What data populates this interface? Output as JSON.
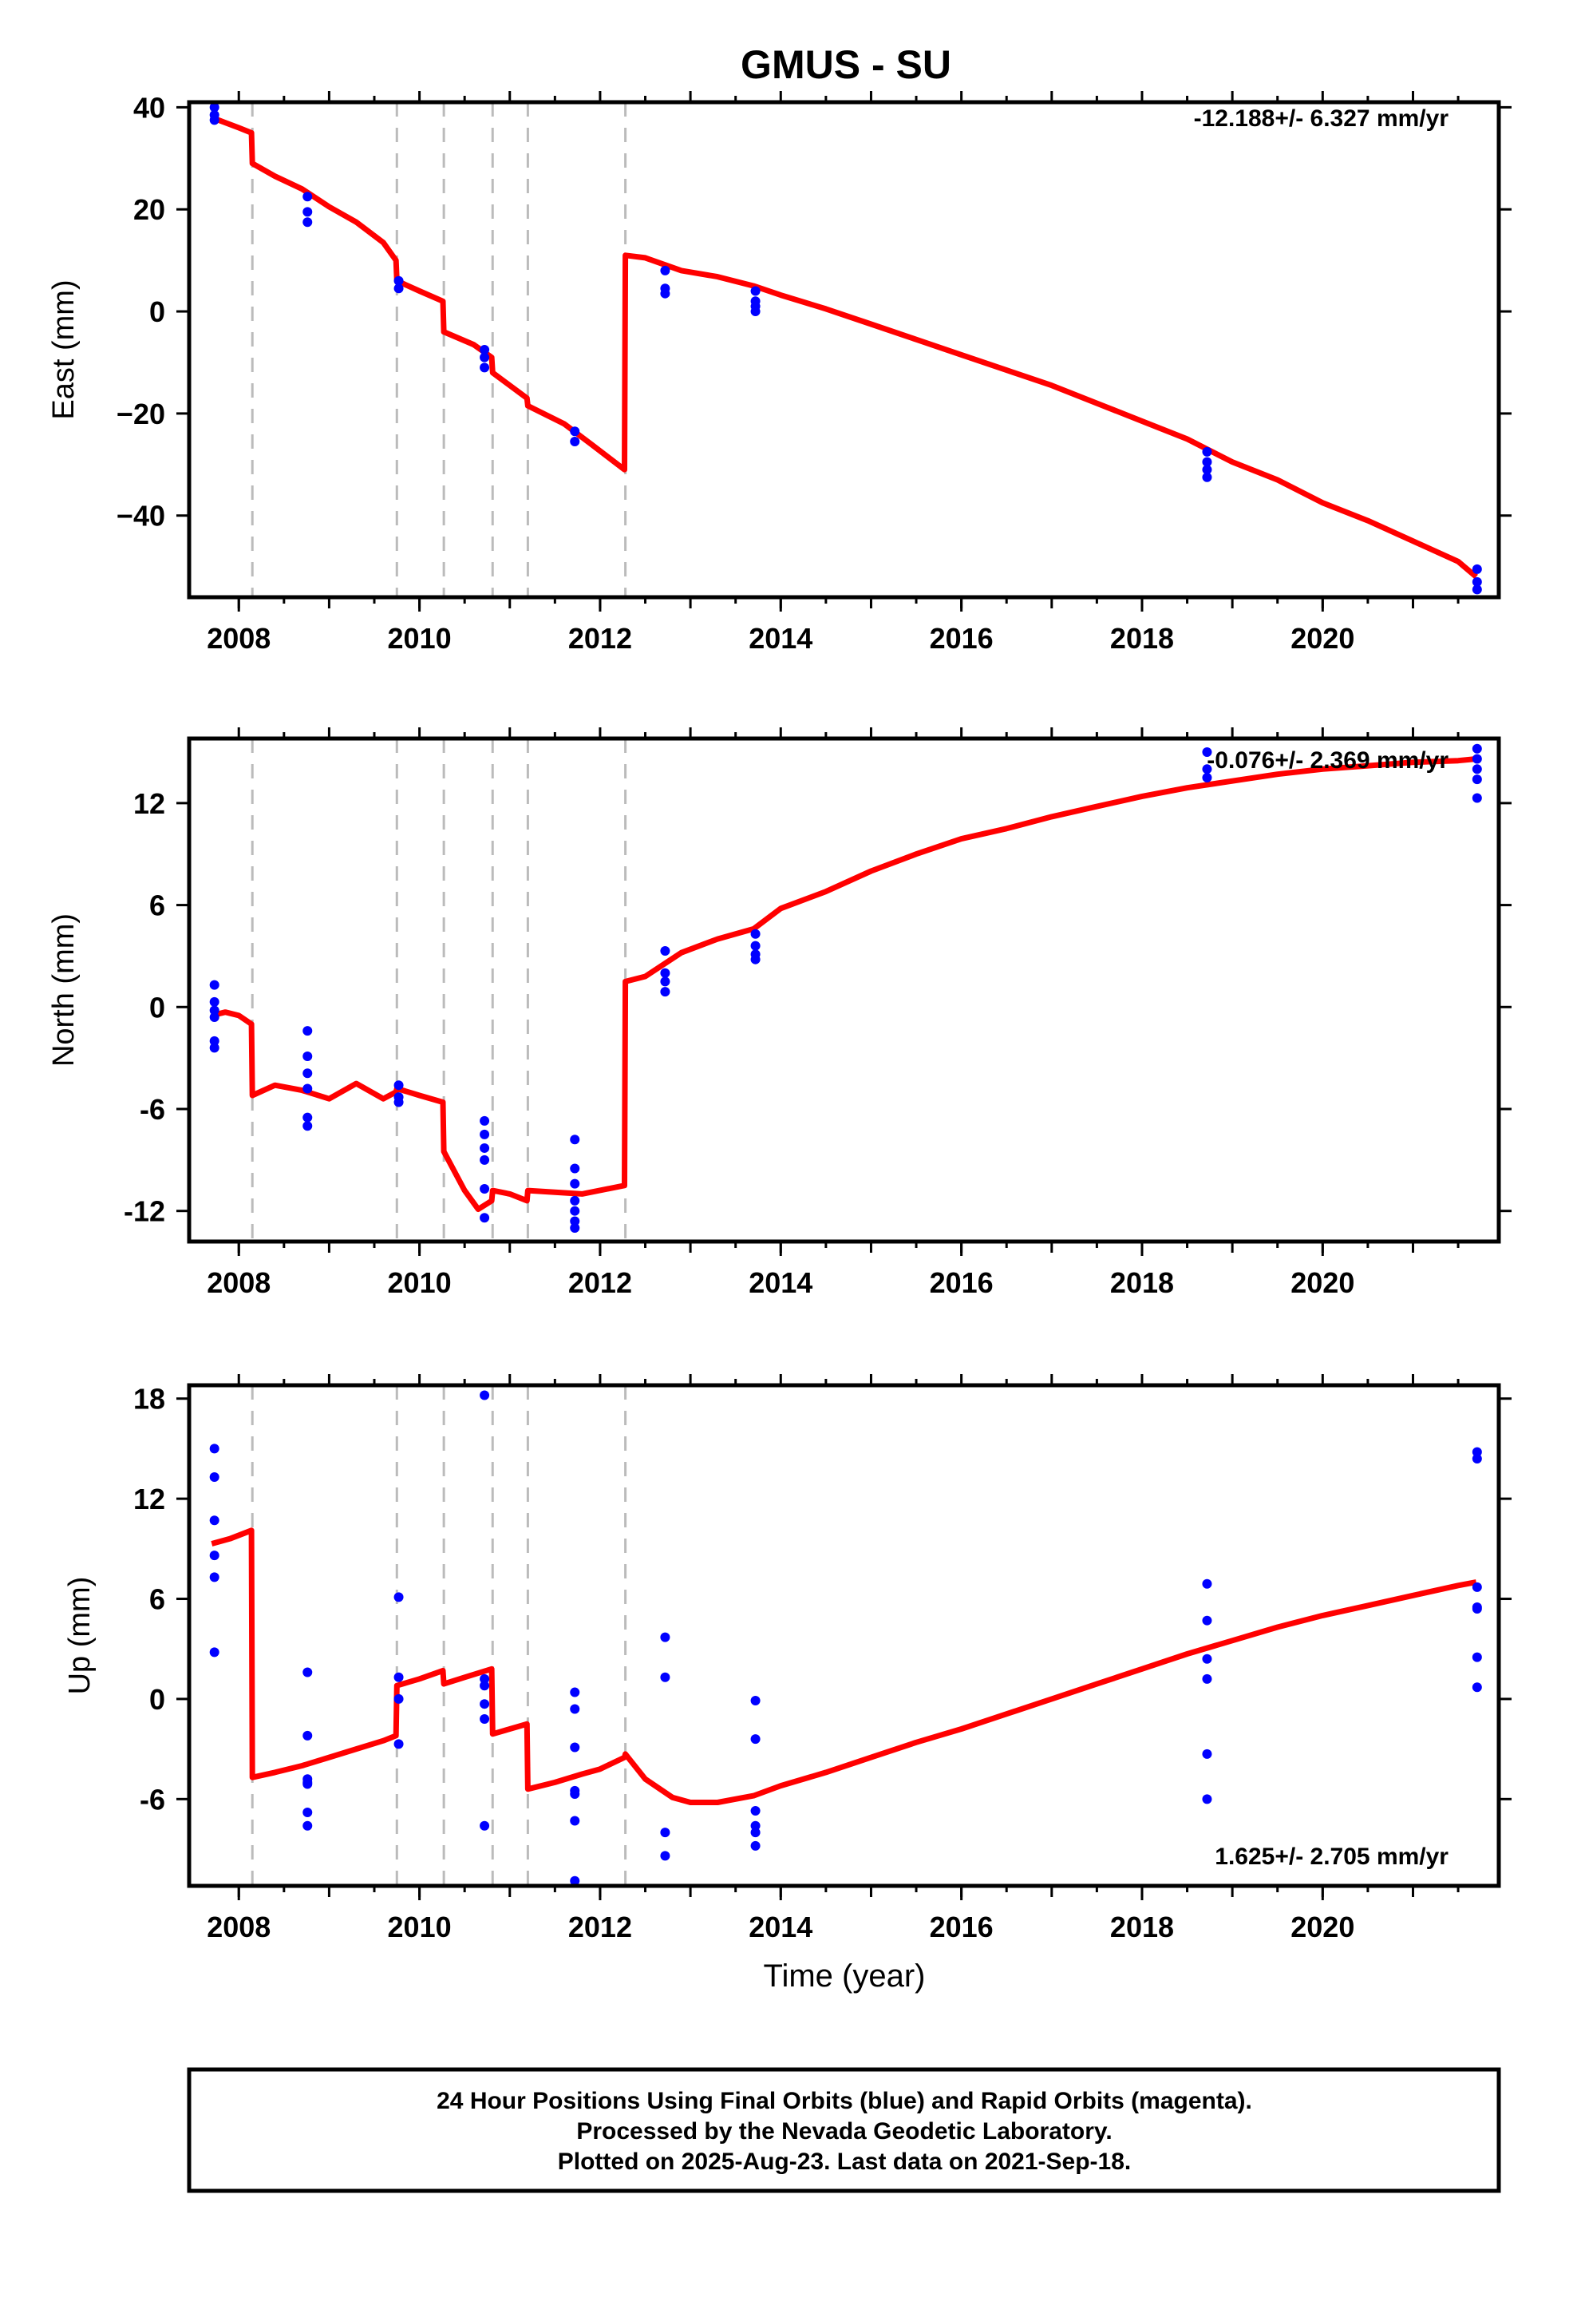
{
  "title": "GMUS - SU",
  "colors": {
    "model": "#ff0000",
    "final_orbit": "#0000ff",
    "break_lines": "#bbbbbb"
  },
  "xaxis": {
    "label": "Time (year)",
    "ticks": [
      "2008",
      "2010",
      "2012",
      "2014",
      "2016",
      "2018",
      "2020"
    ]
  },
  "footer": {
    "line1": "24 Hour Positions Using Final Orbits (blue) and Rapid Orbits (magenta).",
    "line2": "Processed by the Nevada Geodetic Laboratory.",
    "line3": "Plotted on 2025-Aug-23. Last data on 2021-Sep-18."
  },
  "chart_data": [
    {
      "type": "scatter",
      "panel": "east",
      "ylabel": "East (mm)",
      "rate_label": "-12.188+/- 6.327 mm/yr",
      "xlim": [
        2007.45,
        2021.95
      ],
      "ylim": [
        -56,
        41
      ],
      "yticks": [
        40,
        20,
        0,
        -20,
        -40
      ],
      "ytick_labels": [
        "40",
        "20",
        "0",
        "−20",
        "−40"
      ],
      "breaks": [
        2008.15,
        2009.75,
        2010.27,
        2010.81,
        2011.2,
        2012.28
      ],
      "model": {
        "x": [
          2007.7,
          2007.85,
          2008.0,
          2008.14,
          2008.15,
          2008.4,
          2008.7,
          2009.0,
          2009.3,
          2009.6,
          2009.74,
          2009.75,
          2010.0,
          2010.26,
          2010.27,
          2010.6,
          2010.8,
          2010.81,
          2011.19,
          2011.2,
          2011.6,
          2011.9,
          2012.27,
          2012.28,
          2012.5,
          2012.9,
          2013.3,
          2013.7,
          2014.0,
          2014.5,
          2015.0,
          2015.5,
          2016.0,
          2016.5,
          2017.0,
          2017.5,
          2018.0,
          2018.5,
          2019.0,
          2019.5,
          2020.0,
          2020.5,
          2021.0,
          2021.5,
          2021.7
        ],
        "y": [
          38.0,
          37.0,
          36.0,
          35.0,
          29.0,
          26.5,
          24.0,
          20.5,
          17.5,
          13.5,
          10.0,
          6.0,
          4.0,
          2.0,
          -4.0,
          -6.5,
          -9.0,
          -12.0,
          -17.0,
          -18.5,
          -22.0,
          -26.0,
          -31.0,
          11.0,
          10.5,
          8.0,
          6.8,
          5.0,
          3.2,
          0.5,
          -2.5,
          -5.5,
          -8.5,
          -11.5,
          -14.5,
          -18.0,
          -21.5,
          -25.0,
          -29.5,
          -33.0,
          -37.5,
          -41.0,
          -45.0,
          -49.0,
          -52.0
        ]
      },
      "points": {
        "x": [
          2007.73,
          2007.73,
          2007.73,
          2008.76,
          2008.76,
          2008.76,
          2009.77,
          2009.77,
          2010.72,
          2010.72,
          2010.72,
          2011.72,
          2011.72,
          2012.72,
          2012.72,
          2012.72,
          2013.72,
          2013.72,
          2013.72,
          2013.72,
          2018.72,
          2018.72,
          2018.72,
          2018.72,
          2021.71,
          2021.71,
          2021.71
        ],
        "y": [
          40.0,
          38.5,
          37.5,
          22.5,
          19.5,
          17.5,
          6.0,
          4.5,
          -7.5,
          -9.0,
          -11.0,
          -23.5,
          -25.5,
          8.0,
          4.5,
          3.5,
          4.0,
          2.0,
          1.0,
          0.0,
          -27.5,
          -29.5,
          -31.0,
          -32.5,
          -50.5,
          -53.0,
          -54.5
        ]
      }
    },
    {
      "type": "scatter",
      "panel": "north",
      "ylabel": "North (mm)",
      "rate_label": "-0.076+/- 2.369 mm/yr",
      "xlim": [
        2007.45,
        2021.95
      ],
      "ylim": [
        -13.8,
        15.8
      ],
      "yticks": [
        12,
        6,
        0,
        -6,
        -12
      ],
      "ytick_labels": [
        "12",
        "6",
        "0",
        "-6",
        "-12"
      ],
      "breaks": [
        2008.15,
        2009.75,
        2010.27,
        2010.81,
        2011.2,
        2012.28
      ],
      "model": {
        "x": [
          2007.7,
          2007.85,
          2008.0,
          2008.14,
          2008.15,
          2008.4,
          2008.7,
          2009.0,
          2009.3,
          2009.6,
          2009.74,
          2009.75,
          2010.0,
          2010.26,
          2010.27,
          2010.5,
          2010.65,
          2010.8,
          2010.81,
          2011.0,
          2011.19,
          2011.2,
          2011.5,
          2011.8,
          2012.27,
          2012.28,
          2012.5,
          2012.9,
          2013.3,
          2013.7,
          2014.0,
          2014.5,
          2015.0,
          2015.5,
          2016.0,
          2016.5,
          2017.0,
          2017.5,
          2018.0,
          2018.5,
          2019.0,
          2019.5,
          2020.0,
          2020.5,
          2021.0,
          2021.5,
          2021.7
        ],
        "y": [
          -0.5,
          -0.3,
          -0.5,
          -1.0,
          -5.2,
          -4.6,
          -4.9,
          -5.4,
          -4.5,
          -5.4,
          -5.0,
          -4.8,
          -5.2,
          -5.6,
          -8.5,
          -10.8,
          -11.9,
          -11.4,
          -10.8,
          -11.0,
          -11.4,
          -10.8,
          -10.9,
          -11.0,
          -10.5,
          1.5,
          1.8,
          3.2,
          4.0,
          4.6,
          5.8,
          6.8,
          8.0,
          9.0,
          9.9,
          10.5,
          11.2,
          11.8,
          12.4,
          12.9,
          13.3,
          13.7,
          14.0,
          14.2,
          14.4,
          14.5,
          14.6
        ]
      },
      "points": {
        "x": [
          2007.73,
          2007.73,
          2007.73,
          2007.73,
          2007.73,
          2007.73,
          2008.76,
          2008.76,
          2008.76,
          2008.76,
          2008.76,
          2008.76,
          2009.77,
          2009.77,
          2009.77,
          2010.72,
          2010.72,
          2010.72,
          2010.72,
          2010.72,
          2010.72,
          2011.72,
          2011.72,
          2011.72,
          2011.72,
          2011.72,
          2011.72,
          2011.72,
          2012.72,
          2012.72,
          2012.72,
          2012.72,
          2013.72,
          2013.72,
          2013.72,
          2013.72,
          2018.72,
          2018.72,
          2018.72,
          2021.71,
          2021.71,
          2021.71,
          2021.71,
          2021.71
        ],
        "y": [
          1.3,
          0.3,
          -0.2,
          -0.6,
          -2.0,
          -2.4,
          -1.4,
          -2.9,
          -3.9,
          -4.8,
          -6.5,
          -7.0,
          -4.6,
          -5.3,
          -5.6,
          -6.7,
          -7.5,
          -8.3,
          -9.0,
          -10.7,
          -12.4,
          -7.8,
          -9.5,
          -10.4,
          -11.4,
          -12.0,
          -12.6,
          -13.0,
          3.3,
          1.5,
          0.9,
          2.0,
          4.3,
          3.6,
          3.1,
          2.8,
          15.0,
          14.0,
          13.5,
          15.2,
          14.6,
          14.0,
          13.4,
          12.3
        ]
      }
    },
    {
      "type": "scatter",
      "panel": "up",
      "ylabel": "Up (mm)",
      "rate_label": "1.625+/- 2.705 mm/yr",
      "xlim": [
        2007.45,
        2021.95
      ],
      "ylim": [
        -11.2,
        18.8
      ],
      "yticks": [
        18,
        12,
        6,
        0,
        -6
      ],
      "ytick_labels": [
        "18",
        "12",
        "6",
        "0",
        "-6"
      ],
      "breaks": [
        2008.15,
        2009.75,
        2010.27,
        2010.81,
        2011.2,
        2012.28
      ],
      "model": {
        "x": [
          2007.7,
          2007.9,
          2008.14,
          2008.15,
          2008.4,
          2008.7,
          2009.0,
          2009.3,
          2009.6,
          2009.74,
          2009.75,
          2010.0,
          2010.26,
          2010.27,
          2010.5,
          2010.8,
          2010.81,
          2011.0,
          2011.19,
          2011.2,
          2011.5,
          2011.8,
          2012.0,
          2012.27,
          2012.28,
          2012.5,
          2012.8,
          2013.0,
          2013.3,
          2013.7,
          2014.0,
          2014.5,
          2015.0,
          2015.5,
          2016.0,
          2016.5,
          2017.0,
          2017.5,
          2018.0,
          2018.5,
          2019.0,
          2019.5,
          2020.0,
          2020.5,
          2021.0,
          2021.5,
          2021.7
        ],
        "y": [
          9.3,
          9.6,
          10.1,
          -4.7,
          -4.4,
          -4.0,
          -3.5,
          -3.0,
          -2.5,
          -2.2,
          0.8,
          1.2,
          1.7,
          0.9,
          1.3,
          1.8,
          -2.1,
          -1.8,
          -1.5,
          -5.4,
          -5.0,
          -4.5,
          -4.2,
          -3.5,
          -3.3,
          -4.8,
          -5.9,
          -6.2,
          -6.2,
          -5.8,
          -5.2,
          -4.4,
          -3.5,
          -2.6,
          -1.8,
          -0.9,
          0.0,
          0.9,
          1.8,
          2.7,
          3.5,
          4.3,
          5.0,
          5.6,
          6.2,
          6.8,
          7.0
        ]
      },
      "points": {
        "x": [
          2007.73,
          2007.73,
          2007.73,
          2007.73,
          2007.73,
          2007.73,
          2008.76,
          2008.76,
          2008.76,
          2008.76,
          2008.76,
          2008.76,
          2008.76,
          2009.77,
          2009.77,
          2009.77,
          2009.77,
          2010.72,
          2010.72,
          2010.72,
          2010.72,
          2010.72,
          2010.72,
          2011.72,
          2011.72,
          2011.72,
          2011.72,
          2011.72,
          2011.72,
          2011.72,
          2012.72,
          2012.72,
          2012.72,
          2012.72,
          2013.72,
          2013.72,
          2013.72,
          2013.72,
          2013.72,
          2013.72,
          2018.72,
          2018.72,
          2018.72,
          2018.72,
          2018.72,
          2018.72,
          2021.71,
          2021.71,
          2021.71,
          2021.71,
          2021.71,
          2021.71,
          2021.71
        ],
        "y": [
          15.0,
          13.3,
          10.7,
          8.6,
          7.3,
          2.8,
          1.6,
          -2.2,
          -4.8,
          -5.1,
          -6.8,
          -7.6,
          -5.0,
          6.1,
          1.3,
          0.0,
          -2.7,
          18.2,
          1.2,
          0.8,
          -0.3,
          -1.2,
          -7.6,
          0.4,
          -0.6,
          -2.9,
          -5.5,
          -5.7,
          -7.3,
          -10.9,
          3.7,
          1.3,
          -8.0,
          -9.4,
          -0.1,
          -2.4,
          -6.7,
          -7.6,
          -8.0,
          -8.8,
          6.9,
          4.7,
          2.4,
          1.2,
          -3.3,
          -6.0,
          14.8,
          14.4,
          6.7,
          5.5,
          5.4,
          2.5,
          0.7
        ]
      }
    }
  ]
}
